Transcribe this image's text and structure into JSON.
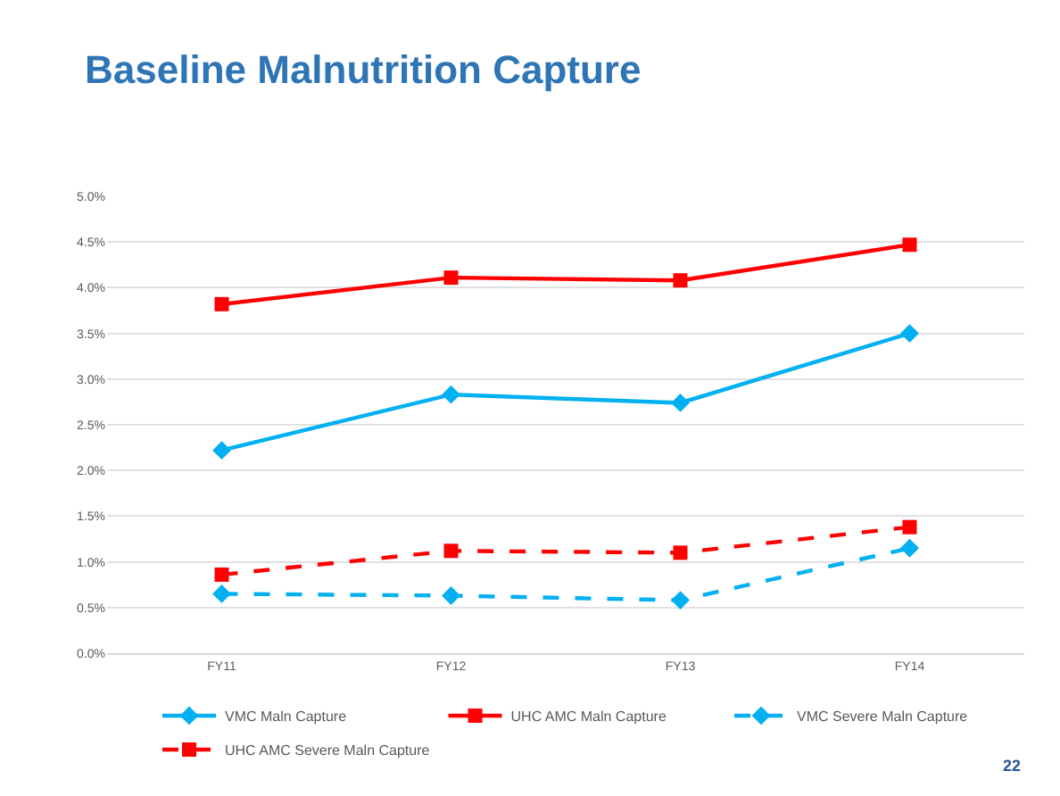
{
  "chart_data": {
    "type": "line",
    "title": "Baseline Malnutrition Capture",
    "categories": [
      "FY11",
      "FY12",
      "FY13",
      "FY14"
    ],
    "series": [
      {
        "name": "VMC Maln Capture",
        "color": "#00b0f0",
        "values": [
          2.22,
          2.83,
          2.74,
          3.5
        ],
        "marker": "diamond",
        "line_style": "solid"
      },
      {
        "name": "UHC AMC Maln Capture",
        "color": "#ff0000",
        "values": [
          3.82,
          4.11,
          4.08,
          4.47
        ],
        "marker": "square",
        "line_style": "solid"
      },
      {
        "name": "VMC Severe Maln Capture",
        "color": "#00b0f0",
        "values": [
          0.65,
          0.63,
          0.58,
          1.15
        ],
        "marker": "diamond",
        "line_style": "dashed"
      },
      {
        "name": "UHC AMC Severe Maln Capture",
        "color": "#ff0000",
        "values": [
          0.86,
          1.12,
          1.1,
          1.38
        ],
        "marker": "square",
        "line_style": "dashed"
      }
    ],
    "ylim": [
      0,
      5
    ],
    "yticks": [
      {
        "value": 0,
        "label": "0.0%"
      },
      {
        "value": 0.5,
        "label": "0.5%"
      },
      {
        "value": 1,
        "label": "1.0%"
      },
      {
        "value": 1.5,
        "label": "1.5%"
      },
      {
        "value": 2,
        "label": "2.0%"
      },
      {
        "value": 2.5,
        "label": "2.5%"
      },
      {
        "value": 3,
        "label": "3.0%"
      },
      {
        "value": 3.5,
        "label": "3.5%"
      },
      {
        "value": 4,
        "label": "4.0%"
      },
      {
        "value": 4.5,
        "label": "4.5%"
      },
      {
        "value": 5,
        "label": "5.0%"
      }
    ],
    "grid": "y",
    "legend": "bottom",
    "annotations": [
      "22"
    ]
  }
}
